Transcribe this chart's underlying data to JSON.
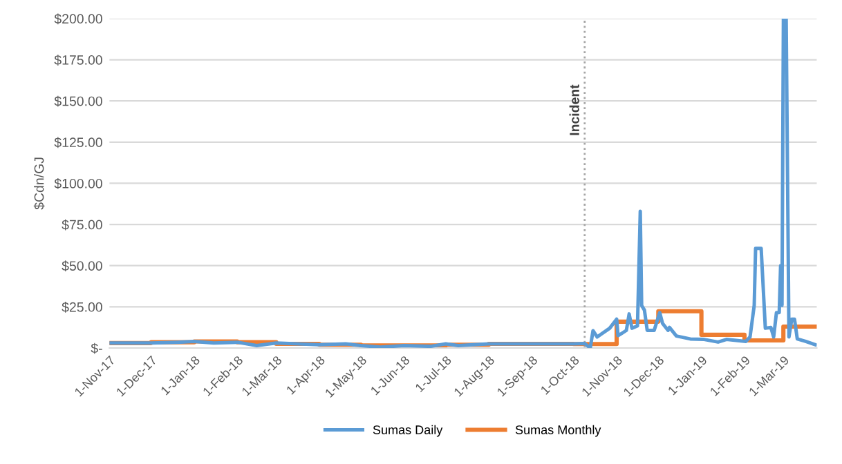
{
  "chart_data": {
    "type": "line",
    "ylabel": "$Cdn/GJ",
    "xlim": [
      "2017-11-01",
      "2019-03-25"
    ],
    "xticks": [
      {
        "value": "2017-11-01",
        "label": "1-Nov-17"
      },
      {
        "value": "2017-12-01",
        "label": "1-Dec-17"
      },
      {
        "value": "2018-01-01",
        "label": "1-Jan-18"
      },
      {
        "value": "2018-02-01",
        "label": "1-Feb-18"
      },
      {
        "value": "2018-03-01",
        "label": "1-Mar-18"
      },
      {
        "value": "2018-04-01",
        "label": "1-Apr-18"
      },
      {
        "value": "2018-05-01",
        "label": "1-May-18"
      },
      {
        "value": "2018-06-01",
        "label": "1-Jun-18"
      },
      {
        "value": "2018-07-01",
        "label": "1-Jul-18"
      },
      {
        "value": "2018-08-01",
        "label": "1-Aug-18"
      },
      {
        "value": "2018-09-01",
        "label": "1-Sep-18"
      },
      {
        "value": "2018-10-01",
        "label": "1-Oct-18"
      },
      {
        "value": "2018-11-01",
        "label": "1-Nov-18"
      },
      {
        "value": "2018-12-01",
        "label": "1-Dec-18"
      },
      {
        "value": "2019-01-01",
        "label": "1-Jan-19"
      },
      {
        "value": "2019-02-01",
        "label": "1-Feb-19"
      },
      {
        "value": "2019-03-01",
        "label": "1-Mar-19"
      }
    ],
    "ylim": [
      0,
      200
    ],
    "yticks": [
      {
        "value": 0,
        "label": "$-"
      },
      {
        "value": 25,
        "label": "$25.00"
      },
      {
        "value": 50,
        "label": "$50.00"
      },
      {
        "value": 75,
        "label": "$75.00"
      },
      {
        "value": 100,
        "label": "$100.00"
      },
      {
        "value": 125,
        "label": "$125.00"
      },
      {
        "value": 150,
        "label": "$150.00"
      },
      {
        "value": 175,
        "label": "$175.00"
      },
      {
        "value": 200,
        "label": "$200.00"
      }
    ],
    "grid": "y",
    "legend": "bottom",
    "marker": "none",
    "line_style": "solid",
    "ref_lines": [
      {
        "axis": "x",
        "value": "2018-10-09",
        "label": "Incident",
        "color": "#a6a6a6",
        "line_style": "dotted"
      }
    ],
    "series": [
      {
        "name": "Sumas Daily",
        "color": "#5b9bd5",
        "x": [
          "2017-11-01",
          "2017-12-01",
          "2017-12-20",
          "2018-01-01",
          "2018-01-15",
          "2018-02-01",
          "2018-02-15",
          "2018-03-01",
          "2018-04-01",
          "2018-04-20",
          "2018-05-01",
          "2018-05-15",
          "2018-06-01",
          "2018-06-20",
          "2018-07-01",
          "2018-07-10",
          "2018-08-01",
          "2018-09-01",
          "2018-10-01",
          "2018-10-09",
          "2018-10-13",
          "2018-10-15",
          "2018-10-18",
          "2018-10-21",
          "2018-10-27",
          "2018-11-01",
          "2018-11-02",
          "2018-11-04",
          "2018-11-08",
          "2018-11-10",
          "2018-11-12",
          "2018-11-16",
          "2018-11-18",
          "2018-11-19",
          "2018-11-21",
          "2018-11-23",
          "2018-11-28",
          "2018-12-02",
          "2018-12-04",
          "2018-12-08",
          "2018-12-09",
          "2018-12-14",
          "2018-12-24",
          "2019-01-03",
          "2019-01-13",
          "2019-01-19",
          "2019-02-02",
          "2019-02-05",
          "2019-02-08",
          "2019-02-09",
          "2019-02-13",
          "2019-02-16",
          "2019-02-20",
          "2019-02-22",
          "2019-02-24",
          "2019-02-26",
          "2019-02-27",
          "2019-02-28",
          "2019-03-01",
          "2019-03-03",
          "2019-03-05",
          "2019-03-07",
          "2019-03-09",
          "2019-03-11",
          "2019-03-17",
          "2019-03-24"
        ],
        "values": [
          3,
          3,
          3.5,
          4,
          3,
          3.5,
          1.5,
          3,
          2,
          2.5,
          1.5,
          0.5,
          1.5,
          1,
          2.5,
          1.5,
          2.5,
          2.5,
          2.5,
          2.7,
          0,
          10.5,
          6.7,
          8.5,
          12,
          17.5,
          7.5,
          8.5,
          10.7,
          20.7,
          12,
          13.4,
          83,
          25.8,
          23,
          10.7,
          10.7,
          21.5,
          15,
          10.7,
          12.5,
          7.3,
          5.5,
          5.2,
          3.6,
          5.2,
          4,
          6.7,
          25.8,
          60.5,
          60.5,
          12,
          12.5,
          6.7,
          21.5,
          21.5,
          50,
          25.8,
          200,
          200,
          6.7,
          17.5,
          17.5,
          5.5,
          4,
          2
        ]
      },
      {
        "name": "Sumas Monthly",
        "color": "#ed7d31",
        "type": "step",
        "x": [
          "2017-11-01",
          "2017-12-01",
          "2018-01-01",
          "2018-02-01",
          "2018-03-01",
          "2018-04-01",
          "2018-05-01",
          "2018-06-01",
          "2018-07-01",
          "2018-08-01",
          "2018-09-01",
          "2018-10-01",
          "2018-11-01",
          "2018-12-01",
          "2019-01-01",
          "2019-02-01",
          "2019-03-01",
          "2019-03-24"
        ],
        "values": [
          3,
          3.5,
          4,
          3.5,
          2.5,
          2,
          1.5,
          1.5,
          2,
          2.5,
          2.5,
          2.4,
          16,
          22.3,
          8,
          4.6,
          13,
          13
        ]
      }
    ]
  }
}
